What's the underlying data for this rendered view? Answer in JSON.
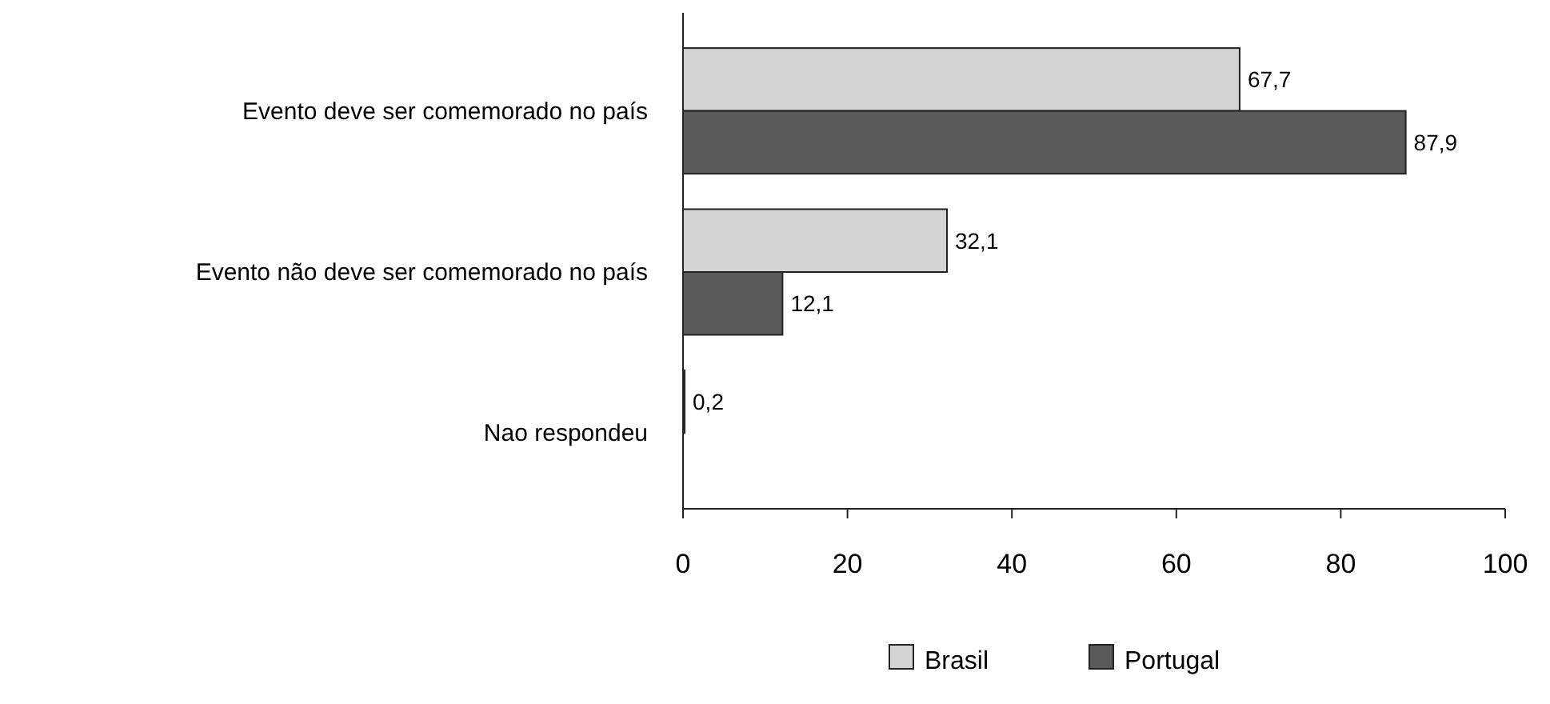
{
  "chart_data": {
    "type": "bar",
    "orientation": "horizontal",
    "categories": [
      "Evento deve ser comemorado no país",
      "Evento não deve ser comemorado no país",
      "Nao respondeu"
    ],
    "series": [
      {
        "name": "Brasil",
        "color": "#d4d4d4",
        "values": [
          67.7,
          32.1,
          0.2
        ],
        "value_labels": [
          "67,7",
          "32,1",
          "0,2"
        ]
      },
      {
        "name": "Portugal",
        "color": "#5a5a5a",
        "values": [
          87.9,
          12.1,
          null
        ],
        "value_labels": [
          "87,9",
          "12,1",
          null
        ]
      }
    ],
    "xlim": [
      0,
      100
    ],
    "xticks": [
      0,
      20,
      40,
      60,
      80,
      100
    ],
    "grid": false,
    "legend": "bottom"
  }
}
